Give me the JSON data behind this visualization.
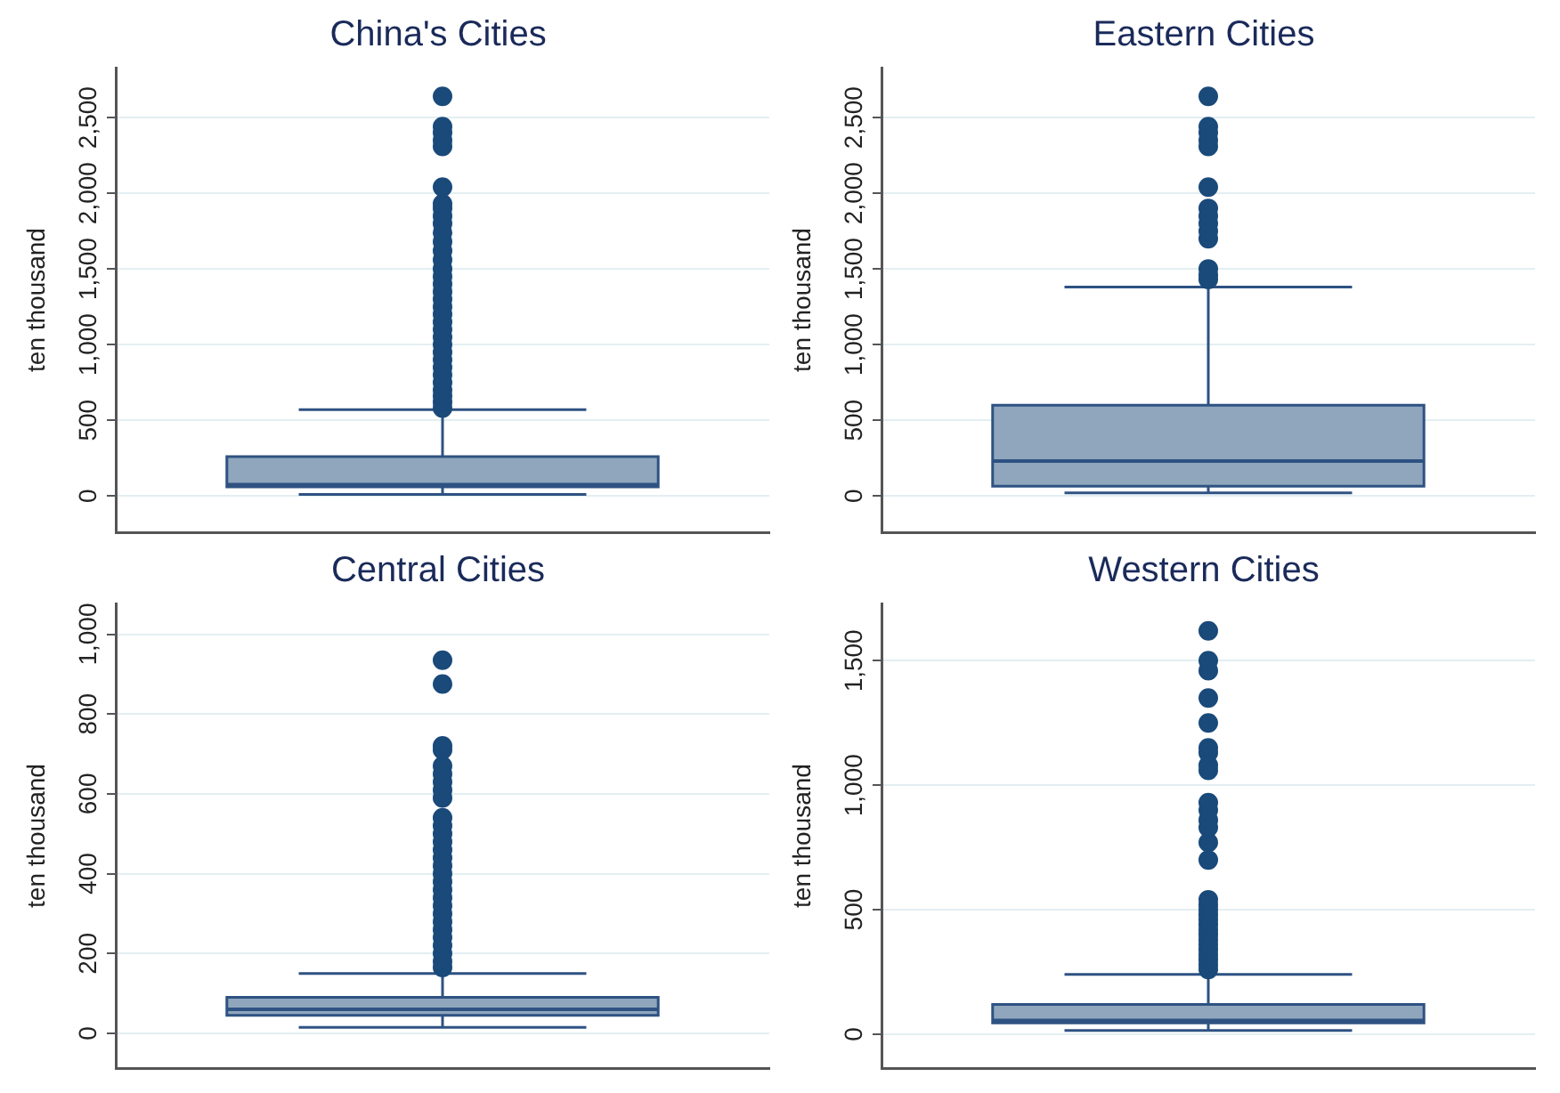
{
  "chart_data": [
    {
      "type": "box",
      "title": "China's Cities",
      "ylabel": "ten thousand",
      "categories": [
        null
      ],
      "color": "#8fa6bd",
      "grid": "y",
      "ylim": [
        -240,
        2830
      ],
      "yticks": [
        0,
        500,
        {
          "value": 1000,
          "label": "1,000"
        },
        {
          "value": 1500,
          "label": "1,500"
        },
        {
          "value": 2000,
          "label": "2,000"
        },
        {
          "value": 2500,
          "label": "2,500"
        }
      ],
      "boxes": [
        {
          "low": 10,
          "q1": 60,
          "median": 75,
          "q3": 260,
          "high": 570,
          "outliers": [
            580,
            620,
            660,
            700,
            750,
            800,
            850,
            900,
            950,
            1000,
            1050,
            1100,
            1150,
            1200,
            1250,
            1300,
            1350,
            1400,
            1450,
            1500,
            1560,
            1620,
            1680,
            1740,
            1800,
            1850,
            1900,
            1930,
            2040,
            2310,
            2350,
            2400,
            2440,
            2640
          ]
        }
      ]
    },
    {
      "type": "box",
      "title": "Eastern Cities",
      "ylabel": "ten thousand",
      "categories": [
        null
      ],
      "color": "#8fa6bd",
      "grid": "y",
      "ylim": [
        -240,
        2830
      ],
      "yticks": [
        0,
        500,
        {
          "value": 1000,
          "label": "1,000"
        },
        {
          "value": 1500,
          "label": "1,500"
        },
        {
          "value": 2000,
          "label": "2,000"
        },
        {
          "value": 2500,
          "label": "2,500"
        }
      ],
      "boxes": [
        {
          "low": 20,
          "q1": 65,
          "median": 230,
          "q3": 600,
          "high": 1380,
          "outliers": [
            1430,
            1460,
            1500,
            1700,
            1750,
            1800,
            1850,
            1900,
            2040,
            2310,
            2350,
            2400,
            2440,
            2640
          ]
        }
      ]
    },
    {
      "type": "box",
      "title": "Central Cities",
      "ylabel": "ten thousand",
      "categories": [
        null
      ],
      "color": "#8fa6bd",
      "grid": "y",
      "ylim": [
        -87,
        1077
      ],
      "yticks": [
        0,
        200,
        400,
        600,
        800,
        {
          "value": 1000,
          "label": "1,000"
        }
      ],
      "boxes": [
        {
          "low": 15,
          "q1": 45,
          "median": 60,
          "q3": 90,
          "high": 150,
          "outliers": [
            165,
            180,
            200,
            220,
            240,
            260,
            280,
            300,
            320,
            340,
            360,
            380,
            400,
            420,
            440,
            460,
            480,
            500,
            520,
            540,
            590,
            610,
            630,
            650,
            670,
            710,
            720,
            875,
            935
          ]
        }
      ]
    },
    {
      "type": "box",
      "title": "Western Cities",
      "ylabel": "ten thousand",
      "categories": [
        null
      ],
      "color": "#8fa6bd",
      "grid": "y",
      "ylim": [
        -136,
        1730
      ],
      "yticks": [
        0,
        500,
        {
          "value": 1000,
          "label": "1,000"
        },
        {
          "value": 1500,
          "label": "1,500"
        }
      ],
      "boxes": [
        {
          "low": 15,
          "q1": 45,
          "median": 55,
          "q3": 120,
          "high": 240,
          "outliers": [
            260,
            280,
            300,
            320,
            340,
            360,
            380,
            400,
            420,
            440,
            460,
            480,
            500,
            520,
            540,
            700,
            770,
            830,
            860,
            900,
            930,
            1060,
            1080,
            1130,
            1150,
            1250,
            1350,
            1460,
            1500,
            1620
          ]
        }
      ]
    }
  ]
}
